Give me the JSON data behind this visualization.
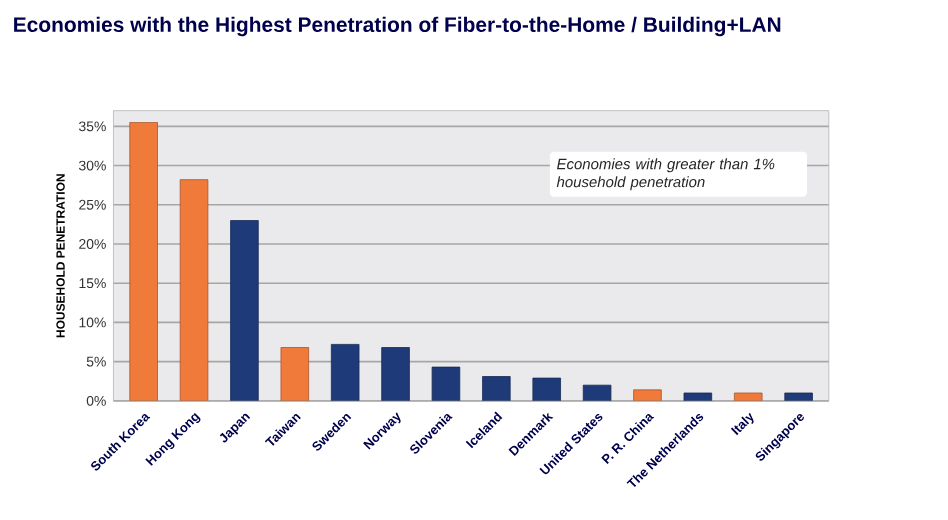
{
  "chart_data": {
    "type": "bar",
    "title": "Economies with the Highest Penetration of Fiber-to-the-Home / Building+LAN",
    "ylabel": "HOUSEHOLD PENETRATION",
    "categories": [
      "South Korea",
      "Hong Kong",
      "Japan",
      "Taiwan",
      "Sweden",
      "Norway",
      "Slovenia",
      "Iceland",
      "Denmark",
      "United States",
      "P. R. China",
      "The Netherlands",
      "Italy",
      "Singapore"
    ],
    "values": [
      35.5,
      28.2,
      23.0,
      6.8,
      7.2,
      6.8,
      4.3,
      3.1,
      2.9,
      2.0,
      1.4,
      1.0,
      1.0,
      1.0
    ],
    "colors": [
      "#f07a3a",
      "#f07a3a",
      "#1f3a78",
      "#f07a3a",
      "#1f3a78",
      "#1f3a78",
      "#1f3a78",
      "#1f3a78",
      "#1f3a78",
      "#1f3a78",
      "#f07a3a",
      "#1f3a78",
      "#f07a3a",
      "#1f3a78"
    ],
    "ylim": [
      0,
      37
    ],
    "yticks": [
      {
        "value": 0,
        "label": "0%"
      },
      {
        "value": 5,
        "label": "5%"
      },
      {
        "value": 10,
        "label": "10%"
      },
      {
        "value": 15,
        "label": "15%"
      },
      {
        "value": 20,
        "label": "20%"
      },
      {
        "value": 25,
        "label": "25%"
      },
      {
        "value": 30,
        "label": "30%"
      },
      {
        "value": 35,
        "label": "35%"
      }
    ],
    "grid": "y",
    "annotations": [
      "Economies with greater than 1% household penetration"
    ]
  }
}
